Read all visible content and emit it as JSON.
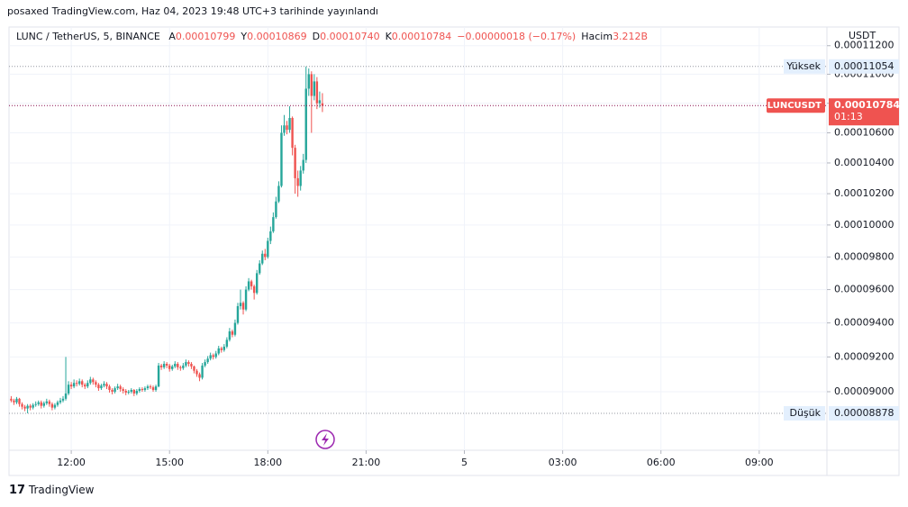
{
  "caption": "posaxed TradingView.com, Haz 04, 2023 19:48 UTC+3 tarihinde yayınlandı",
  "brand": "TradingView",
  "chart_data": {
    "type": "candlestick",
    "title": "LUNC / TetherUS, 5, BINANCE",
    "ohlc_legend": [
      {
        "label": "A",
        "value": "0.00010799"
      },
      {
        "label": "Y",
        "value": "0.00010869"
      },
      {
        "label": "D",
        "value": "0.00010740"
      },
      {
        "label": "K",
        "value": "0.00010784"
      }
    ],
    "change": "−0.00000018 (−0.17%)",
    "volume_label": "Hacim",
    "volume": "3.212B",
    "currency": "USDT",
    "log_scale": true,
    "grid": true,
    "up_color": "#26a69a",
    "down_color": "#ef5350",
    "xlim": [
      606,
      2104
    ],
    "xticks": [
      {
        "value": 720,
        "label": "12:00"
      },
      {
        "value": 900,
        "label": "15:00"
      },
      {
        "value": 1080,
        "label": "18:00"
      },
      {
        "value": 1260,
        "label": "21:00"
      },
      {
        "value": 1440,
        "label": "5"
      },
      {
        "value": 1620,
        "label": "03:00"
      },
      {
        "value": 1800,
        "label": "06:00"
      },
      {
        "value": 1980,
        "label": "09:00"
      }
    ],
    "ylim": [
      8.673e-05,
      0.00011333
    ],
    "yticks": [
      {
        "value": 9e-05,
        "label": "0.00009000"
      },
      {
        "value": 9.2e-05,
        "label": "0.00009200"
      },
      {
        "value": 9.4e-05,
        "label": "0.00009400"
      },
      {
        "value": 9.6e-05,
        "label": "0.00009600"
      },
      {
        "value": 9.8e-05,
        "label": "0.00009800"
      },
      {
        "value": 0.0001,
        "label": "0.00010000"
      },
      {
        "value": 0.000102,
        "label": "0.00010200"
      },
      {
        "value": 0.000104,
        "label": "0.00010400"
      },
      {
        "value": 0.000106,
        "label": "0.00010600"
      },
      {
        "value": 0.000108,
        "label": "0.00010800"
      },
      {
        "value": 0.00011,
        "label": "0.00011000"
      },
      {
        "value": 0.000112,
        "label": "0.00011200"
      }
    ],
    "price_lines": [
      {
        "label": "Yüksek",
        "value": 0.00011054
      },
      {
        "label": "Düşük",
        "value": 8.878e-05
      }
    ],
    "last_price": {
      "label": "LUNCUSDT",
      "value": 0.00010784,
      "countdown": "01:13",
      "color": "#ef5350"
    },
    "series": [
      {
        "name": "LUNCUSDT",
        "x": [
          610,
          615,
          620,
          625,
          630,
          635,
          640,
          645,
          650,
          655,
          660,
          665,
          670,
          675,
          680,
          685,
          690,
          695,
          700,
          705,
          710,
          715,
          720,
          725,
          730,
          735,
          740,
          745,
          750,
          755,
          760,
          765,
          770,
          775,
          780,
          785,
          790,
          795,
          800,
          805,
          810,
          815,
          820,
          825,
          830,
          835,
          840,
          845,
          850,
          855,
          860,
          865,
          870,
          875,
          880,
          885,
          890,
          895,
          900,
          905,
          910,
          915,
          920,
          925,
          930,
          935,
          940,
          945,
          950,
          955,
          960,
          965,
          970,
          975,
          980,
          985,
          990,
          995,
          1000,
          1005,
          1010,
          1015,
          1020,
          1025,
          1030,
          1035,
          1040,
          1045,
          1050,
          1055,
          1060,
          1065,
          1070,
          1075,
          1080,
          1085,
          1090,
          1095,
          1100,
          1105,
          1110,
          1115,
          1120,
          1125,
          1130,
          1135,
          1140,
          1145,
          1150,
          1155,
          1160,
          1165,
          1170,
          1175,
          1180
        ],
        "open": [
          8.96e-05,
          8.95e-05,
          8.94e-05,
          8.96e-05,
          8.93e-05,
          8.915e-05,
          8.905e-05,
          8.92e-05,
          8.91e-05,
          8.925e-05,
          8.93e-05,
          8.94e-05,
          8.92e-05,
          8.935e-05,
          8.945e-05,
          8.93e-05,
          8.91e-05,
          8.925e-05,
          8.94e-05,
          8.95e-05,
          8.96e-05,
          8.99e-05,
          9.04e-05,
          9.03e-05,
          9.05e-05,
          9.045e-05,
          9.06e-05,
          9.04e-05,
          9.03e-05,
          9.05e-05,
          9.07e-05,
          9.055e-05,
          9.04e-05,
          9.02e-05,
          9.035e-05,
          9.045e-05,
          9.03e-05,
          9.01e-05,
          9e-05,
          9.02e-05,
          9.03e-05,
          9.015e-05,
          9.005e-05,
          8.995e-05,
          9e-05,
          9.01e-05,
          8.99e-05,
          9.005e-05,
          9.015e-05,
          9.01e-05,
          9.02e-05,
          9.03e-05,
          9.025e-05,
          9.01e-05,
          9.03e-05,
          9.15e-05,
          9.14e-05,
          9.16e-05,
          9.15e-05,
          9.13e-05,
          9.145e-05,
          9.16e-05,
          9.14e-05,
          9.135e-05,
          9.15e-05,
          9.17e-05,
          9.16e-05,
          9.145e-05,
          9.12e-05,
          9.1e-05,
          9.08e-05,
          9.15e-05,
          9.17e-05,
          9.19e-05,
          9.21e-05,
          9.2e-05,
          9.22e-05,
          9.25e-05,
          9.24e-05,
          9.26e-05,
          9.3e-05,
          9.35e-05,
          9.33e-05,
          9.4e-05,
          9.5e-05,
          9.52e-05,
          9.48e-05,
          9.6e-05,
          9.65e-05,
          9.62e-05,
          9.58e-05,
          9.7e-05,
          9.76e-05,
          9.82e-05,
          9.8e-05,
          9.9e-05,
          9.96e-05,
          0.0001005,
          0.0001015,
          0.0001025,
          0.000106,
          0.0001065,
          0.0001062,
          0.000107,
          0.000105,
          0.000103,
          0.0001025,
          0.0001035,
          0.0001042,
          0.000109,
          0.00011,
          0.0001085,
          0.0001095,
          0.000108,
          0.00010799
        ],
        "high": [
          8.975e-05,
          8.96e-05,
          8.97e-05,
          8.965e-05,
          8.94e-05,
          8.925e-05,
          8.93e-05,
          8.93e-05,
          8.935e-05,
          8.945e-05,
          8.95e-05,
          8.95e-05,
          8.945e-05,
          8.96e-05,
          8.955e-05,
          8.94e-05,
          8.935e-05,
          8.95e-05,
          8.965e-05,
          8.975e-05,
          9.2e-05,
          9.06e-05,
          9.055e-05,
          9.07e-05,
          9.065e-05,
          9.075e-05,
          9.07e-05,
          9.05e-05,
          9.065e-05,
          9.085e-05,
          9.08e-05,
          9.065e-05,
          9.05e-05,
          9.045e-05,
          9.06e-05,
          9.055e-05,
          9.04e-05,
          9.02e-05,
          9.03e-05,
          9.045e-05,
          9.04e-05,
          9.025e-05,
          9.015e-05,
          9.01e-05,
          9.02e-05,
          9.015e-05,
          9.015e-05,
          9.025e-05,
          9.025e-05,
          9.03e-05,
          9.04e-05,
          9.04e-05,
          9.035e-05,
          9.04e-05,
          9.165e-05,
          9.16e-05,
          9.175e-05,
          9.17e-05,
          9.16e-05,
          9.155e-05,
          9.175e-05,
          9.17e-05,
          9.15e-05,
          9.165e-05,
          9.185e-05,
          9.18e-05,
          9.17e-05,
          9.15e-05,
          9.13e-05,
          9.11e-05,
          9.165e-05,
          9.185e-05,
          9.205e-05,
          9.225e-05,
          9.22e-05,
          9.235e-05,
          9.265e-05,
          9.26e-05,
          9.275e-05,
          9.315e-05,
          9.37e-05,
          9.36e-05,
          9.42e-05,
          9.52e-05,
          9.6e-05,
          9.53e-05,
          9.62e-05,
          9.67e-05,
          9.66e-05,
          9.63e-05,
          9.72e-05,
          9.78e-05,
          9.84e-05,
          9.85e-05,
          9.92e-05,
          9.99e-05,
          0.0001008,
          0.0001018,
          0.0001028,
          0.0001065,
          0.0001072,
          0.0001068,
          0.0001078,
          0.0001071,
          0.0001052,
          0.0001035,
          0.0001038,
          0.0001046,
          0.00011054,
          0.0001104,
          0.0001102,
          0.00011,
          0.0001098,
          0.0001088,
          0.00010869
        ],
        "low": [
          8.94e-05,
          8.925e-05,
          8.93e-05,
          8.915e-05,
          8.9e-05,
          8.89e-05,
          8.878e-05,
          8.895e-05,
          8.9e-05,
          8.915e-05,
          8.92e-05,
          8.905e-05,
          8.91e-05,
          8.925e-05,
          8.915e-05,
          8.895e-05,
          8.9e-05,
          8.915e-05,
          8.93e-05,
          8.94e-05,
          8.95e-05,
          8.98e-05,
          9.015e-05,
          9.02e-05,
          9.03e-05,
          9.035e-05,
          9.025e-05,
          9.015e-05,
          9.02e-05,
          9.04e-05,
          9.04e-05,
          9.025e-05,
          9.005e-05,
          9.01e-05,
          9.025e-05,
          9.015e-05,
          8.995e-05,
          8.985e-05,
          8.99e-05,
          9.01e-05,
          9e-05,
          8.99e-05,
          8.98e-05,
          8.985e-05,
          8.99e-05,
          8.975e-05,
          8.98e-05,
          8.995e-05,
          9e-05,
          9e-05,
          9.01e-05,
          9.015e-05,
          9e-05,
          9e-05,
          9.025e-05,
          9.125e-05,
          9.13e-05,
          9.135e-05,
          9.115e-05,
          9.12e-05,
          9.135e-05,
          9.125e-05,
          9.12e-05,
          9.125e-05,
          9.14e-05,
          9.145e-05,
          9.13e-05,
          9.105e-05,
          9.085e-05,
          9.06e-05,
          9.07e-05,
          9.14e-05,
          9.16e-05,
          9.18e-05,
          9.185e-05,
          9.19e-05,
          9.21e-05,
          9.225e-05,
          9.23e-05,
          9.25e-05,
          9.29e-05,
          9.315e-05,
          9.32e-05,
          9.39e-05,
          9.48e-05,
          9.45e-05,
          9.47e-05,
          9.59e-05,
          9.6e-05,
          9.54e-05,
          9.57e-05,
          9.69e-05,
          9.75e-05,
          9.78e-05,
          9.79e-05,
          9.88e-05,
          9.95e-05,
          0.0001004,
          0.0001014,
          0.0001024,
          0.0001058,
          0.0001059,
          0.000106,
          0.0001045,
          0.000102,
          0.0001018,
          0.0001022,
          0.0001033,
          0.000104,
          0.0001085,
          0.000106,
          0.0001082,
          0.0001076,
          0.0001077,
          0.0001074
        ],
        "close": [
          8.95e-05,
          8.94e-05,
          8.96e-05,
          8.93e-05,
          8.915e-05,
          8.905e-05,
          8.92e-05,
          8.91e-05,
          8.925e-05,
          8.93e-05,
          8.94e-05,
          8.92e-05,
          8.935e-05,
          8.945e-05,
          8.93e-05,
          8.91e-05,
          8.925e-05,
          8.94e-05,
          8.95e-05,
          8.96e-05,
          8.99e-05,
          9.04e-05,
          9.03e-05,
          9.05e-05,
          9.045e-05,
          9.06e-05,
          9.04e-05,
          9.03e-05,
          9.05e-05,
          9.07e-05,
          9.055e-05,
          9.04e-05,
          9.02e-05,
          9.035e-05,
          9.045e-05,
          9.03e-05,
          9.01e-05,
          9e-05,
          9.02e-05,
          9.03e-05,
          9.015e-05,
          9.005e-05,
          8.995e-05,
          9e-05,
          9.01e-05,
          8.99e-05,
          9.005e-05,
          9.015e-05,
          9.01e-05,
          9.02e-05,
          9.03e-05,
          9.025e-05,
          9.01e-05,
          9.03e-05,
          9.15e-05,
          9.14e-05,
          9.16e-05,
          9.15e-05,
          9.13e-05,
          9.145e-05,
          9.16e-05,
          9.14e-05,
          9.135e-05,
          9.15e-05,
          9.17e-05,
          9.16e-05,
          9.145e-05,
          9.12e-05,
          9.1e-05,
          9.08e-05,
          9.15e-05,
          9.17e-05,
          9.19e-05,
          9.21e-05,
          9.2e-05,
          9.22e-05,
          9.25e-05,
          9.24e-05,
          9.26e-05,
          9.3e-05,
          9.35e-05,
          9.33e-05,
          9.4e-05,
          9.5e-05,
          9.52e-05,
          9.48e-05,
          9.6e-05,
          9.65e-05,
          9.62e-05,
          9.58e-05,
          9.7e-05,
          9.76e-05,
          9.82e-05,
          9.8e-05,
          9.9e-05,
          9.96e-05,
          0.0001005,
          0.0001015,
          0.0001025,
          0.000106,
          0.0001065,
          0.0001062,
          0.000107,
          0.000105,
          0.000103,
          0.0001025,
          0.0001035,
          0.0001042,
          0.000109,
          0.00011,
          0.0001085,
          0.0001095,
          0.000108,
          0.0001082,
          0.00010784
        ]
      }
    ]
  }
}
